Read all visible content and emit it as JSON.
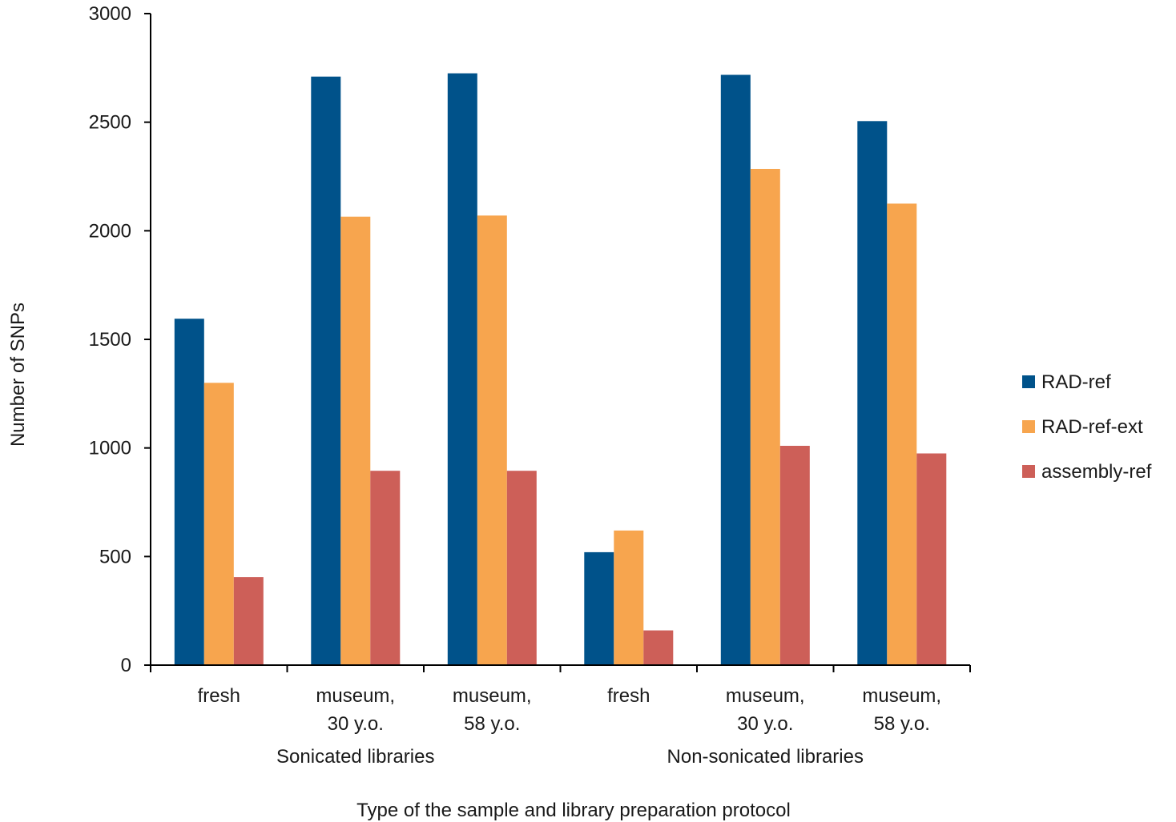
{
  "chart_data": {
    "type": "bar",
    "title": "",
    "xlabel": "Type of the sample and library preparation protocol",
    "ylabel": "Number of SNPs",
    "ylim": [
      0,
      3000
    ],
    "yticks": [
      "0",
      "500",
      "1000",
      "1500",
      "2000",
      "2500",
      "3000"
    ],
    "grid": false,
    "legend_position": "right",
    "categories": [
      {
        "line1": "fresh",
        "line2": ""
      },
      {
        "line1": "museum,",
        "line2": "30 y.o."
      },
      {
        "line1": "museum,",
        "line2": "58 y.o."
      },
      {
        "line1": "fresh",
        "line2": ""
      },
      {
        "line1": "museum,",
        "line2": "30 y.o."
      },
      {
        "line1": "museum,",
        "line2": "58 y.o."
      }
    ],
    "groups": [
      {
        "label": "Sonicated libraries",
        "span": [
          0,
          2
        ]
      },
      {
        "label": "Non-sonicated libraries",
        "span": [
          3,
          5
        ]
      }
    ],
    "series": [
      {
        "name": "RAD-ref",
        "color": "#00528a",
        "values": [
          1595,
          2710,
          2725,
          520,
          2718,
          2505
        ]
      },
      {
        "name": "RAD-ref-ext",
        "color": "#f7a54e",
        "values": [
          1300,
          2065,
          2070,
          620,
          2285,
          2125
        ]
      },
      {
        "name": "assembly-ref",
        "color": "#cd5f58",
        "values": [
          405,
          895,
          895,
          160,
          1010,
          975
        ]
      }
    ]
  }
}
